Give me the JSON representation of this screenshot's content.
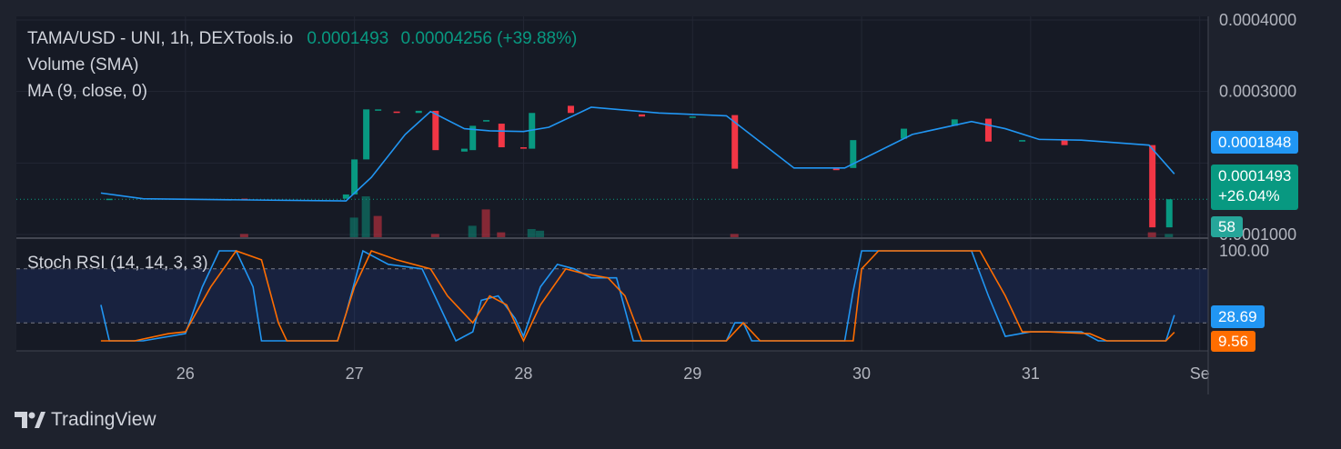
{
  "legend": {
    "symbol": "TAMA/USD - UNI, 1h, DEXTools.io",
    "last_price": "0.0001493",
    "change": "0.00004256 (+39.88%)",
    "volume_label": "Volume (SMA)",
    "ma_label": "MA (9, close, 0)",
    "stoch_label": "Stoch RSI (14, 14, 3, 3)"
  },
  "price_axis": {
    "ticks": [
      "0.0004000",
      "0.0003000",
      "0.0001000"
    ],
    "ma_tag": "0.0001848",
    "last_tag": "0.0001493",
    "last_change_tag": "+26.04%",
    "volume_tag": "58"
  },
  "stoch_axis": {
    "ticks": [
      "100.00"
    ],
    "k_tag": "28.69",
    "d_tag": "9.56"
  },
  "time_axis": {
    "ticks": [
      "26",
      "27",
      "28",
      "29",
      "30",
      "31",
      "Se"
    ]
  },
  "branding": {
    "name": "TradingView",
    "logo_icon": "tradingview-logo-icon"
  },
  "colors": {
    "up": "#089981",
    "down": "#f23645",
    "ma": "#2962ff",
    "ma_line": "#2196f3",
    "stoch_k": "#2196f3",
    "stoch_d": "#ff6d00",
    "background": "#1e222d",
    "pane": "#161a25"
  },
  "chart_data": [
    {
      "type": "candlestick",
      "title": "TAMA/USD - UNI, 1h, DEXTools.io",
      "ylim": [
        0.0001,
        0.0004
      ],
      "x_ticks": [
        "26",
        "27",
        "28",
        "29",
        "30",
        "31",
        "Se"
      ],
      "candles": [
        {
          "x": 25.55,
          "o": 0.00015,
          "c": 0.00015
        },
        {
          "x": 26.35,
          "o": 0.00015,
          "c": 0.000148
        },
        {
          "x": 26.95,
          "o": 0.00015,
          "c": 0.000156
        },
        {
          "x": 27.0,
          "o": 0.000156,
          "c": 0.000205
        },
        {
          "x": 27.07,
          "o": 0.000205,
          "c": 0.000275
        },
        {
          "x": 27.14,
          "o": 0.000275,
          "c": 0.000275
        },
        {
          "x": 27.25,
          "o": 0.000272,
          "c": 0.00027
        },
        {
          "x": 27.38,
          "o": 0.00027,
          "c": 0.000273
        },
        {
          "x": 27.48,
          "o": 0.000273,
          "c": 0.000218
        },
        {
          "x": 27.65,
          "o": 0.000216,
          "c": 0.00022
        },
        {
          "x": 27.7,
          "o": 0.000218,
          "c": 0.000252
        },
        {
          "x": 27.78,
          "o": 0.000258,
          "c": 0.00026
        },
        {
          "x": 27.87,
          "o": 0.000255,
          "c": 0.000222
        },
        {
          "x": 28.0,
          "o": 0.000222,
          "c": 0.00022
        },
        {
          "x": 28.05,
          "o": 0.00022,
          "c": 0.00027
        },
        {
          "x": 28.28,
          "o": 0.00028,
          "c": 0.00027
        },
        {
          "x": 28.7,
          "o": 0.000268,
          "c": 0.000265
        },
        {
          "x": 29.0,
          "o": 0.000265,
          "c": 0.000265
        },
        {
          "x": 29.25,
          "o": 0.000267,
          "c": 0.000192
        },
        {
          "x": 29.85,
          "o": 0.000193,
          "c": 0.00019
        },
        {
          "x": 29.95,
          "o": 0.000193,
          "c": 0.000232
        },
        {
          "x": 30.25,
          "o": 0.000234,
          "c": 0.000248
        },
        {
          "x": 30.55,
          "o": 0.000252,
          "c": 0.000261
        },
        {
          "x": 30.75,
          "o": 0.000262,
          "c": 0.00023
        },
        {
          "x": 30.95,
          "o": 0.00023,
          "c": 0.000232
        },
        {
          "x": 31.2,
          "o": 0.000232,
          "c": 0.000225
        },
        {
          "x": 31.72,
          "o": 0.000225,
          "c": 0.00011
        },
        {
          "x": 31.82,
          "o": 0.00011,
          "c": 0.0001493
        }
      ],
      "ma": [
        {
          "x": 25.5,
          "y": 0.000158
        },
        {
          "x": 25.75,
          "y": 0.00015
        },
        {
          "x": 26.5,
          "y": 0.000148
        },
        {
          "x": 26.95,
          "y": 0.000147
        },
        {
          "x": 27.1,
          "y": 0.00018
        },
        {
          "x": 27.3,
          "y": 0.00024
        },
        {
          "x": 27.45,
          "y": 0.000272
        },
        {
          "x": 27.65,
          "y": 0.000248
        },
        {
          "x": 27.8,
          "y": 0.000245
        },
        {
          "x": 28.0,
          "y": 0.000244
        },
        {
          "x": 28.15,
          "y": 0.00025
        },
        {
          "x": 28.4,
          "y": 0.000278
        },
        {
          "x": 28.8,
          "y": 0.00027
        },
        {
          "x": 29.2,
          "y": 0.000266
        },
        {
          "x": 29.6,
          "y": 0.000193
        },
        {
          "x": 29.9,
          "y": 0.000193
        },
        {
          "x": 30.3,
          "y": 0.00024
        },
        {
          "x": 30.65,
          "y": 0.000258
        },
        {
          "x": 30.85,
          "y": 0.000248
        },
        {
          "x": 31.05,
          "y": 0.000233
        },
        {
          "x": 31.3,
          "y": 0.000232
        },
        {
          "x": 31.7,
          "y": 0.000225
        },
        {
          "x": 31.85,
          "y": 0.0001848
        }
      ],
      "volume": [
        {
          "x": 26.35,
          "v": 2,
          "dir": "down"
        },
        {
          "x": 27.0,
          "v": 12,
          "dir": "up"
        },
        {
          "x": 27.07,
          "v": 25,
          "dir": "up"
        },
        {
          "x": 27.14,
          "v": 13,
          "dir": "down"
        },
        {
          "x": 27.48,
          "v": 2,
          "dir": "down"
        },
        {
          "x": 27.7,
          "v": 7,
          "dir": "up"
        },
        {
          "x": 27.78,
          "v": 17,
          "dir": "down"
        },
        {
          "x": 27.87,
          "v": 3,
          "dir": "down"
        },
        {
          "x": 28.05,
          "v": 5,
          "dir": "up"
        },
        {
          "x": 28.1,
          "v": 4,
          "dir": "up"
        },
        {
          "x": 29.25,
          "v": 2,
          "dir": "down"
        },
        {
          "x": 31.72,
          "v": 3,
          "dir": "down"
        },
        {
          "x": 31.82,
          "v": 2,
          "dir": "up"
        }
      ]
    },
    {
      "type": "line",
      "title": "Stoch RSI (14, 14, 3, 3)",
      "ylim": [
        0,
        100
      ],
      "series": [
        {
          "name": "K",
          "color": "#2196f3",
          "points": [
            [
              25.5,
              40
            ],
            [
              25.55,
              0
            ],
            [
              25.75,
              0
            ],
            [
              26.0,
              8
            ],
            [
              26.1,
              60
            ],
            [
              26.2,
              100
            ],
            [
              26.3,
              100
            ],
            [
              26.4,
              60
            ],
            [
              26.45,
              0
            ],
            [
              26.9,
              0
            ],
            [
              26.95,
              30
            ],
            [
              27.05,
              100
            ],
            [
              27.2,
              85
            ],
            [
              27.4,
              80
            ],
            [
              27.5,
              40
            ],
            [
              27.6,
              0
            ],
            [
              27.7,
              10
            ],
            [
              27.75,
              45
            ],
            [
              27.85,
              50
            ],
            [
              27.95,
              25
            ],
            [
              28.0,
              5
            ],
            [
              28.1,
              60
            ],
            [
              28.2,
              85
            ],
            [
              28.3,
              80
            ],
            [
              28.4,
              70
            ],
            [
              28.55,
              70
            ],
            [
              28.65,
              0
            ],
            [
              29.2,
              0
            ],
            [
              29.25,
              20
            ],
            [
              29.3,
              20
            ],
            [
              29.35,
              0
            ],
            [
              29.9,
              0
            ],
            [
              29.95,
              55
            ],
            [
              30.0,
              100
            ],
            [
              30.65,
              100
            ],
            [
              30.75,
              50
            ],
            [
              30.85,
              5
            ],
            [
              31.0,
              10
            ],
            [
              31.3,
              10
            ],
            [
              31.4,
              0
            ],
            [
              31.8,
              0
            ],
            [
              31.85,
              28.69
            ]
          ]
        },
        {
          "name": "D",
          "color": "#ff6d00",
          "points": [
            [
              25.5,
              0
            ],
            [
              25.7,
              0
            ],
            [
              25.9,
              8
            ],
            [
              26.0,
              10
            ],
            [
              26.15,
              60
            ],
            [
              26.3,
              100
            ],
            [
              26.45,
              90
            ],
            [
              26.55,
              20
            ],
            [
              26.6,
              0
            ],
            [
              26.9,
              0
            ],
            [
              27.0,
              60
            ],
            [
              27.1,
              100
            ],
            [
              27.25,
              90
            ],
            [
              27.45,
              80
            ],
            [
              27.55,
              50
            ],
            [
              27.7,
              20
            ],
            [
              27.8,
              50
            ],
            [
              27.9,
              40
            ],
            [
              28.0,
              0
            ],
            [
              28.1,
              40
            ],
            [
              28.25,
              80
            ],
            [
              28.35,
              75
            ],
            [
              28.5,
              70
            ],
            [
              28.6,
              50
            ],
            [
              28.7,
              0
            ],
            [
              29.2,
              0
            ],
            [
              29.3,
              20
            ],
            [
              29.4,
              0
            ],
            [
              29.95,
              0
            ],
            [
              30.0,
              80
            ],
            [
              30.1,
              100
            ],
            [
              30.7,
              100
            ],
            [
              30.85,
              50
            ],
            [
              30.95,
              10
            ],
            [
              31.1,
              10
            ],
            [
              31.35,
              8
            ],
            [
              31.45,
              0
            ],
            [
              31.8,
              0
            ],
            [
              31.85,
              9.56
            ]
          ]
        }
      ],
      "bands": [
        20,
        80
      ]
    }
  ]
}
